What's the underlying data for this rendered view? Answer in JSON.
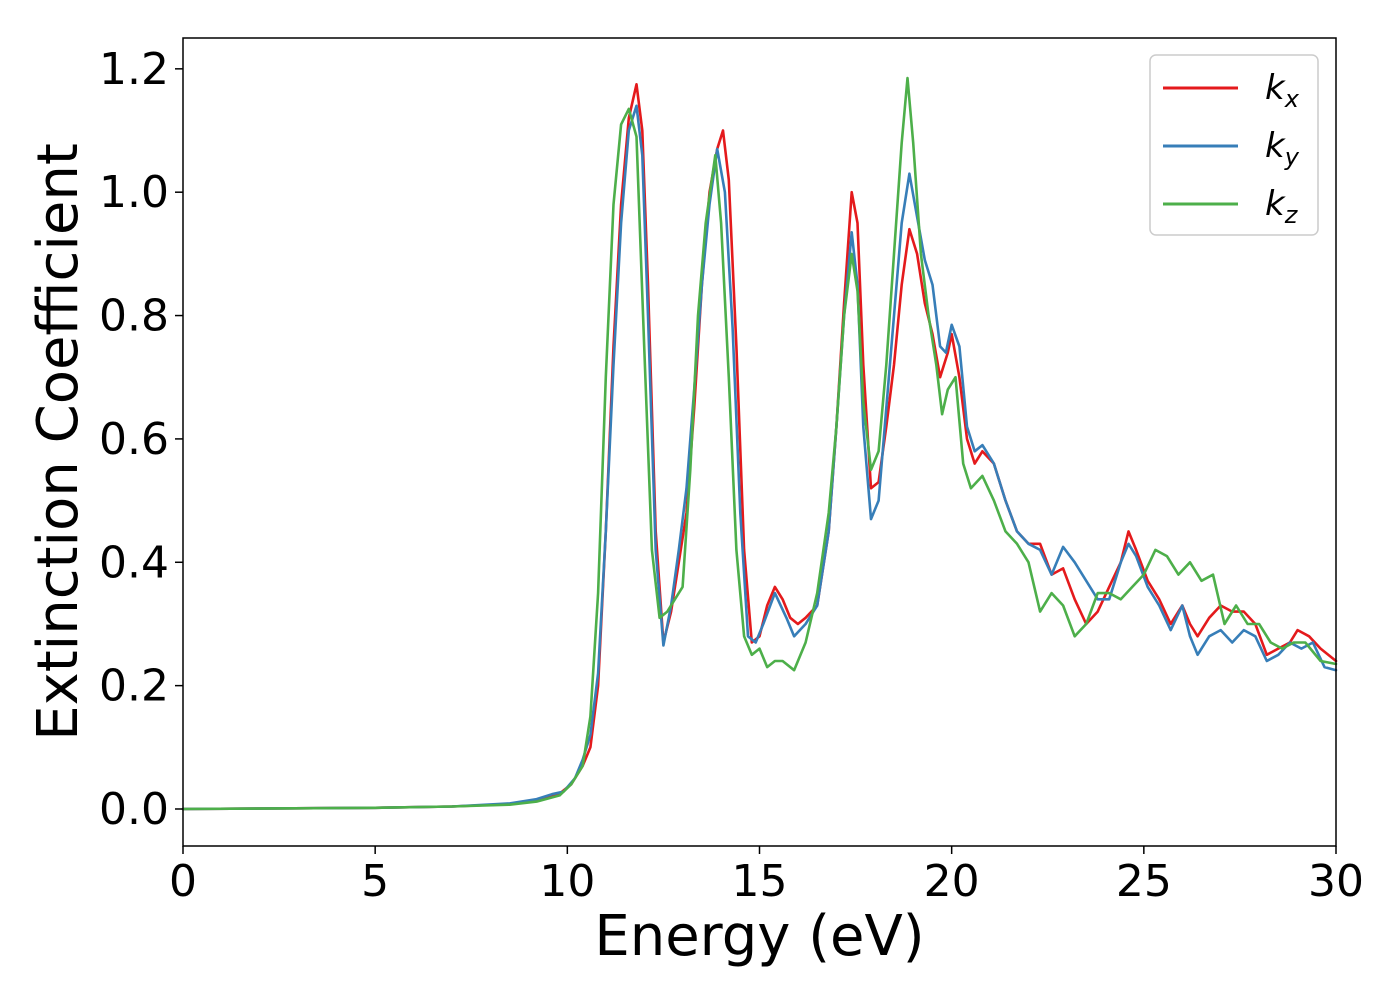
{
  "chart_data": {
    "type": "line",
    "xlabel": "Energy (eV)",
    "ylabel": "Extinction Coefficient",
    "xlim": [
      0,
      30
    ],
    "ylim": [
      -0.06,
      1.25
    ],
    "xticks": [
      0,
      5,
      10,
      15,
      20,
      25,
      30
    ],
    "xtick_labels": [
      "0",
      "5",
      "10",
      "15",
      "20",
      "25",
      "30"
    ],
    "yticks": [
      0.0,
      0.2,
      0.4,
      0.6,
      0.8,
      1.0,
      1.2
    ],
    "ytick_labels": [
      "0.0",
      "0.2",
      "0.4",
      "0.6",
      "0.8",
      "1.0",
      "1.2"
    ],
    "grid": false,
    "legend_position": "top-right",
    "series": [
      {
        "name": "k",
        "subscript": "x",
        "color": "#e41a1c",
        "points": [
          [
            0,
            0.0
          ],
          [
            5,
            0.002
          ],
          [
            7,
            0.004
          ],
          [
            8.5,
            0.008
          ],
          [
            9.2,
            0.014
          ],
          [
            9.8,
            0.025
          ],
          [
            10.1,
            0.04
          ],
          [
            10.4,
            0.07
          ],
          [
            10.6,
            0.1
          ],
          [
            10.8,
            0.2
          ],
          [
            11.0,
            0.45
          ],
          [
            11.2,
            0.75
          ],
          [
            11.4,
            0.98
          ],
          [
            11.6,
            1.12
          ],
          [
            11.8,
            1.175
          ],
          [
            11.95,
            1.1
          ],
          [
            12.1,
            0.85
          ],
          [
            12.3,
            0.45
          ],
          [
            12.5,
            0.27
          ],
          [
            12.7,
            0.32
          ],
          [
            12.9,
            0.4
          ],
          [
            13.1,
            0.48
          ],
          [
            13.3,
            0.65
          ],
          [
            13.5,
            0.85
          ],
          [
            13.7,
            1.0
          ],
          [
            13.9,
            1.07
          ],
          [
            14.05,
            1.1
          ],
          [
            14.2,
            1.02
          ],
          [
            14.4,
            0.75
          ],
          [
            14.6,
            0.42
          ],
          [
            14.8,
            0.27
          ],
          [
            15.0,
            0.28
          ],
          [
            15.2,
            0.33
          ],
          [
            15.4,
            0.36
          ],
          [
            15.6,
            0.34
          ],
          [
            15.8,
            0.31
          ],
          [
            16.0,
            0.3
          ],
          [
            16.2,
            0.31
          ],
          [
            16.5,
            0.33
          ],
          [
            16.8,
            0.45
          ],
          [
            17.0,
            0.62
          ],
          [
            17.2,
            0.82
          ],
          [
            17.4,
            1.0
          ],
          [
            17.55,
            0.95
          ],
          [
            17.7,
            0.72
          ],
          [
            17.9,
            0.52
          ],
          [
            18.1,
            0.53
          ],
          [
            18.3,
            0.62
          ],
          [
            18.5,
            0.72
          ],
          [
            18.7,
            0.85
          ],
          [
            18.9,
            0.94
          ],
          [
            19.1,
            0.9
          ],
          [
            19.3,
            0.82
          ],
          [
            19.5,
            0.77
          ],
          [
            19.7,
            0.7
          ],
          [
            19.9,
            0.74
          ],
          [
            20.0,
            0.77
          ],
          [
            20.2,
            0.7
          ],
          [
            20.4,
            0.6
          ],
          [
            20.6,
            0.56
          ],
          [
            20.8,
            0.58
          ],
          [
            21.1,
            0.56
          ],
          [
            21.4,
            0.5
          ],
          [
            21.7,
            0.45
          ],
          [
            22.0,
            0.43
          ],
          [
            22.3,
            0.43
          ],
          [
            22.6,
            0.38
          ],
          [
            22.9,
            0.39
          ],
          [
            23.2,
            0.34
          ],
          [
            23.5,
            0.3
          ],
          [
            23.8,
            0.32
          ],
          [
            24.1,
            0.36
          ],
          [
            24.4,
            0.4
          ],
          [
            24.6,
            0.45
          ],
          [
            24.8,
            0.42
          ],
          [
            25.1,
            0.37
          ],
          [
            25.4,
            0.34
          ],
          [
            25.7,
            0.3
          ],
          [
            26.0,
            0.33
          ],
          [
            26.2,
            0.3
          ],
          [
            26.4,
            0.28
          ],
          [
            26.7,
            0.31
          ],
          [
            27.0,
            0.33
          ],
          [
            27.3,
            0.32
          ],
          [
            27.6,
            0.32
          ],
          [
            27.9,
            0.3
          ],
          [
            28.2,
            0.25
          ],
          [
            28.5,
            0.26
          ],
          [
            28.8,
            0.27
          ],
          [
            29.0,
            0.29
          ],
          [
            29.3,
            0.28
          ],
          [
            29.6,
            0.26
          ],
          [
            30,
            0.24
          ]
        ]
      },
      {
        "name": "k",
        "subscript": "y",
        "color": "#377eb8",
        "points": [
          [
            0,
            0.0
          ],
          [
            5,
            0.002
          ],
          [
            7,
            0.004
          ],
          [
            8.5,
            0.009
          ],
          [
            9.2,
            0.016
          ],
          [
            9.6,
            0.024
          ],
          [
            9.9,
            0.028
          ],
          [
            10.2,
            0.05
          ],
          [
            10.4,
            0.08
          ],
          [
            10.6,
            0.12
          ],
          [
            10.8,
            0.22
          ],
          [
            11.0,
            0.45
          ],
          [
            11.2,
            0.72
          ],
          [
            11.4,
            0.95
          ],
          [
            11.6,
            1.1
          ],
          [
            11.8,
            1.14
          ],
          [
            11.95,
            1.06
          ],
          [
            12.1,
            0.8
          ],
          [
            12.3,
            0.42
          ],
          [
            12.5,
            0.265
          ],
          [
            12.7,
            0.33
          ],
          [
            12.9,
            0.42
          ],
          [
            13.1,
            0.52
          ],
          [
            13.3,
            0.68
          ],
          [
            13.5,
            0.85
          ],
          [
            13.7,
            0.98
          ],
          [
            13.9,
            1.07
          ],
          [
            14.1,
            1.0
          ],
          [
            14.3,
            0.78
          ],
          [
            14.5,
            0.48
          ],
          [
            14.7,
            0.28
          ],
          [
            14.9,
            0.27
          ],
          [
            15.1,
            0.3
          ],
          [
            15.4,
            0.35
          ],
          [
            15.7,
            0.31
          ],
          [
            15.9,
            0.28
          ],
          [
            16.2,
            0.3
          ],
          [
            16.5,
            0.33
          ],
          [
            16.8,
            0.45
          ],
          [
            17.0,
            0.62
          ],
          [
            17.2,
            0.8
          ],
          [
            17.4,
            0.935
          ],
          [
            17.55,
            0.85
          ],
          [
            17.7,
            0.62
          ],
          [
            17.9,
            0.47
          ],
          [
            18.1,
            0.5
          ],
          [
            18.3,
            0.65
          ],
          [
            18.5,
            0.8
          ],
          [
            18.7,
            0.95
          ],
          [
            18.9,
            1.03
          ],
          [
            19.1,
            0.96
          ],
          [
            19.3,
            0.89
          ],
          [
            19.5,
            0.85
          ],
          [
            19.7,
            0.75
          ],
          [
            19.85,
            0.74
          ],
          [
            20.0,
            0.785
          ],
          [
            20.2,
            0.75
          ],
          [
            20.4,
            0.62
          ],
          [
            20.6,
            0.58
          ],
          [
            20.8,
            0.59
          ],
          [
            21.1,
            0.56
          ],
          [
            21.4,
            0.5
          ],
          [
            21.7,
            0.45
          ],
          [
            22.0,
            0.43
          ],
          [
            22.3,
            0.42
          ],
          [
            22.6,
            0.38
          ],
          [
            22.9,
            0.425
          ],
          [
            23.2,
            0.4
          ],
          [
            23.5,
            0.37
          ],
          [
            23.8,
            0.34
          ],
          [
            24.1,
            0.34
          ],
          [
            24.4,
            0.4
          ],
          [
            24.6,
            0.43
          ],
          [
            24.8,
            0.41
          ],
          [
            25.1,
            0.36
          ],
          [
            25.4,
            0.33
          ],
          [
            25.7,
            0.29
          ],
          [
            26.0,
            0.33
          ],
          [
            26.2,
            0.28
          ],
          [
            26.4,
            0.25
          ],
          [
            26.7,
            0.28
          ],
          [
            27.0,
            0.29
          ],
          [
            27.3,
            0.27
          ],
          [
            27.6,
            0.29
          ],
          [
            27.9,
            0.28
          ],
          [
            28.2,
            0.24
          ],
          [
            28.5,
            0.25
          ],
          [
            28.8,
            0.27
          ],
          [
            29.1,
            0.26
          ],
          [
            29.4,
            0.27
          ],
          [
            29.7,
            0.23
          ],
          [
            30,
            0.225
          ]
        ]
      },
      {
        "name": "k",
        "subscript": "z",
        "color": "#4daf4a",
        "points": [
          [
            0,
            0.0
          ],
          [
            5,
            0.002
          ],
          [
            7,
            0.004
          ],
          [
            8.5,
            0.007
          ],
          [
            9.2,
            0.012
          ],
          [
            9.8,
            0.022
          ],
          [
            10.1,
            0.04
          ],
          [
            10.4,
            0.07
          ],
          [
            10.6,
            0.15
          ],
          [
            10.8,
            0.35
          ],
          [
            11.0,
            0.7
          ],
          [
            11.2,
            0.98
          ],
          [
            11.4,
            1.11
          ],
          [
            11.6,
            1.135
          ],
          [
            11.8,
            1.09
          ],
          [
            12.0,
            0.75
          ],
          [
            12.2,
            0.42
          ],
          [
            12.4,
            0.31
          ],
          [
            12.6,
            0.32
          ],
          [
            12.8,
            0.34
          ],
          [
            13.0,
            0.36
          ],
          [
            13.2,
            0.55
          ],
          [
            13.4,
            0.8
          ],
          [
            13.6,
            0.95
          ],
          [
            13.85,
            1.06
          ],
          [
            14.0,
            0.95
          ],
          [
            14.2,
            0.7
          ],
          [
            14.4,
            0.42
          ],
          [
            14.6,
            0.28
          ],
          [
            14.8,
            0.25
          ],
          [
            15.0,
            0.26
          ],
          [
            15.2,
            0.23
          ],
          [
            15.4,
            0.24
          ],
          [
            15.6,
            0.24
          ],
          [
            15.9,
            0.225
          ],
          [
            16.2,
            0.27
          ],
          [
            16.5,
            0.35
          ],
          [
            16.8,
            0.48
          ],
          [
            17.0,
            0.62
          ],
          [
            17.2,
            0.8
          ],
          [
            17.4,
            0.9
          ],
          [
            17.55,
            0.84
          ],
          [
            17.7,
            0.66
          ],
          [
            17.9,
            0.55
          ],
          [
            18.1,
            0.58
          ],
          [
            18.3,
            0.72
          ],
          [
            18.5,
            0.9
          ],
          [
            18.7,
            1.08
          ],
          [
            18.85,
            1.185
          ],
          [
            19.0,
            1.08
          ],
          [
            19.2,
            0.9
          ],
          [
            19.4,
            0.8
          ],
          [
            19.6,
            0.72
          ],
          [
            19.75,
            0.64
          ],
          [
            19.9,
            0.68
          ],
          [
            20.1,
            0.7
          ],
          [
            20.3,
            0.56
          ],
          [
            20.5,
            0.52
          ],
          [
            20.8,
            0.54
          ],
          [
            21.1,
            0.5
          ],
          [
            21.4,
            0.45
          ],
          [
            21.7,
            0.43
          ],
          [
            22.0,
            0.4
          ],
          [
            22.3,
            0.32
          ],
          [
            22.6,
            0.35
          ],
          [
            22.9,
            0.33
          ],
          [
            23.2,
            0.28
          ],
          [
            23.5,
            0.3
          ],
          [
            23.8,
            0.35
          ],
          [
            24.1,
            0.35
          ],
          [
            24.4,
            0.34
          ],
          [
            24.7,
            0.36
          ],
          [
            25.0,
            0.38
          ],
          [
            25.3,
            0.42
          ],
          [
            25.6,
            0.41
          ],
          [
            25.9,
            0.38
          ],
          [
            26.2,
            0.4
          ],
          [
            26.5,
            0.37
          ],
          [
            26.8,
            0.38
          ],
          [
            27.1,
            0.3
          ],
          [
            27.4,
            0.33
          ],
          [
            27.7,
            0.3
          ],
          [
            28.0,
            0.3
          ],
          [
            28.3,
            0.27
          ],
          [
            28.6,
            0.26
          ],
          [
            28.9,
            0.27
          ],
          [
            29.2,
            0.27
          ],
          [
            29.6,
            0.24
          ],
          [
            30,
            0.235
          ]
        ]
      }
    ]
  }
}
